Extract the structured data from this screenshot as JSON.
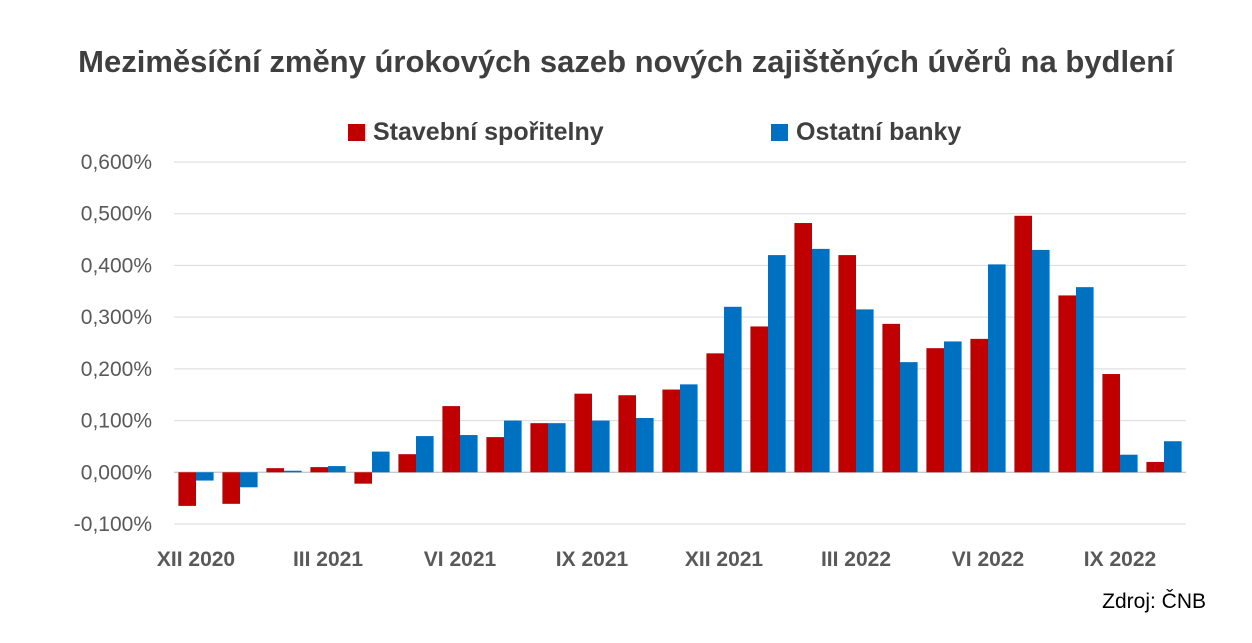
{
  "colors": {
    "series_0": "#c00000",
    "series_1": "#0070c0",
    "grid": "#d9d9d9",
    "text": "#595959"
  },
  "source_note": "Zdroj: ČNB",
  "chart_data": {
    "type": "bar",
    "title": "Meziměsíční změny úrokových sazeb nových zajištěných úvěrů na bydlení",
    "xlabel": "",
    "ylabel": "",
    "ylim": [
      -0.1,
      0.6
    ],
    "y_ticks": [
      -0.1,
      0.0,
      0.1,
      0.2,
      0.3,
      0.4,
      0.5,
      0.6
    ],
    "y_tick_labels": [
      "-0,100%",
      "0,000%",
      "0,100%",
      "0,200%",
      "0,300%",
      "0,400%",
      "0,500%",
      "0,600%"
    ],
    "grid": true,
    "legend_position": "top",
    "categories": [
      "XII 2020",
      "I 2021",
      "II 2021",
      "III 2021",
      "IV 2021",
      "V 2021",
      "VI 2021",
      "VII 2021",
      "VIII 2021",
      "IX 2021",
      "X 2021",
      "XI 2021",
      "XII 2021",
      "I 2022",
      "II 2022",
      "III 2022",
      "IV 2022",
      "V 2022",
      "VI 2022",
      "VII 2022",
      "VIII 2022",
      "IX 2022",
      "X 2022"
    ],
    "x_tick_labels": [
      "XII 2020",
      "",
      "",
      "III 2021",
      "",
      "",
      "VI 2021",
      "",
      "",
      "IX 2021",
      "",
      "",
      "XII 2021",
      "",
      "",
      "III 2022",
      "",
      "",
      "VI 2022",
      "",
      "",
      "IX 2022",
      ""
    ],
    "series": [
      {
        "name": "Stavební spořitelny",
        "values": [
          -0.065,
          -0.061,
          0.008,
          0.01,
          -0.022,
          0.035,
          0.128,
          0.068,
          0.095,
          0.152,
          0.149,
          0.16,
          0.23,
          0.282,
          0.482,
          0.42,
          0.287,
          0.24,
          0.258,
          0.496,
          0.342,
          0.19,
          0.02
        ]
      },
      {
        "name": "Ostatní banky",
        "values": [
          -0.016,
          -0.029,
          0.003,
          0.012,
          0.04,
          0.07,
          0.072,
          0.1,
          0.095,
          0.1,
          0.105,
          0.17,
          0.32,
          0.42,
          0.432,
          0.315,
          0.213,
          0.253,
          0.402,
          0.43,
          0.358,
          0.034,
          0.06
        ]
      }
    ]
  }
}
